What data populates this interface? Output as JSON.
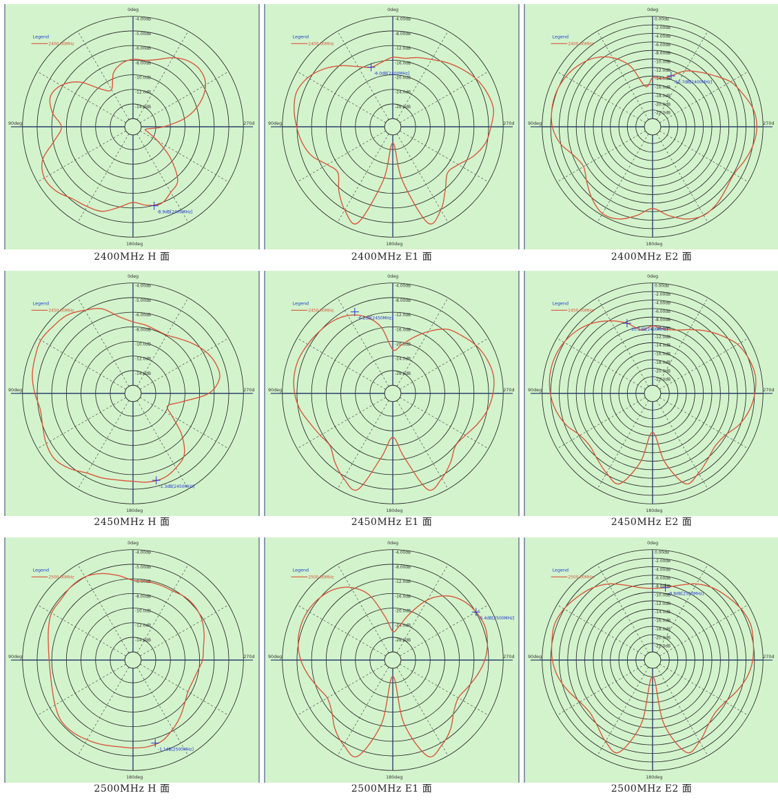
{
  "palette": {
    "background": "#d3f3cc",
    "grid": "#1a1a1a",
    "trace": "#d9553b",
    "marker": "#2233cc",
    "legend_text": "#1f3fcf"
  },
  "angle_labels": {
    "top": "0deg",
    "left": "90deg",
    "right": "270d",
    "bottom": "180deg"
  },
  "legend_title": "Legend",
  "chart_data": [
    {
      "type": "polar",
      "caption": "2400MHz H 面",
      "legend": "2400.00MHz",
      "rings": 7,
      "ring_labels": [
        "-4.00dB",
        "-5.00dB",
        "-6.00dB",
        "-8.00dB",
        "-10.0dB",
        "-12.0dB",
        "-14.0dB"
      ],
      "marker_label": "-8.9dB[2400MHz]",
      "marker_angle": 195,
      "r": [
        0.58,
        0.55,
        0.48,
        0.34,
        0.4,
        0.6,
        0.73,
        0.78,
        0.72,
        0.62,
        0.7,
        0.86,
        0.92,
        0.9,
        0.84,
        0.82,
        0.8,
        0.72,
        0.66,
        0.7,
        0.72,
        0.66,
        0.6,
        0.4,
        0.2,
        0.08,
        0.05,
        0.22,
        0.45,
        0.62,
        0.74,
        0.78,
        0.76,
        0.7,
        0.62,
        0.58
      ]
    },
    {
      "type": "polar",
      "caption": "2400MHz E1 面",
      "legend": "2400.00MHz",
      "rings": 7,
      "ring_labels": [
        "-4.00dB",
        "-8.00dB",
        "-12.0dB",
        "-16.0dB",
        "-20.0dB",
        "-24.0dB",
        "-28.0dB"
      ],
      "marker_label": "-6.0dB[2400MHz]",
      "marker_angle": 20,
      "r": [
        0.6,
        0.56,
        0.54,
        0.6,
        0.7,
        0.8,
        0.88,
        0.92,
        0.9,
        0.86,
        0.82,
        0.76,
        0.66,
        0.62,
        0.74,
        0.86,
        0.92,
        0.45,
        0.08,
        0.45,
        0.92,
        0.86,
        0.72,
        0.62,
        0.66,
        0.76,
        0.84,
        0.88,
        0.92,
        0.9,
        0.86,
        0.8,
        0.74,
        0.68,
        0.64,
        0.6
      ]
    },
    {
      "type": "polar",
      "caption": "2400MHz E2 面",
      "legend": "2400.00MHz",
      "rings": 12,
      "ring_labels": [
        "0.00dB",
        "-2.00dB",
        "-4.00dB",
        "-6.00dB",
        "-8.00dB",
        "-10.0dB",
        "-12.0dB",
        "-14.0dB",
        "-16.0dB",
        "-18.0dB",
        "-20.0dB",
        "-22.0dB"
      ],
      "marker_label": "-10.7dB[2400MHz]",
      "marker_angle": 340,
      "r": [
        0.4,
        0.32,
        0.55,
        0.7,
        0.8,
        0.86,
        0.9,
        0.92,
        0.92,
        0.9,
        0.84,
        0.74,
        0.7,
        0.76,
        0.84,
        0.9,
        0.88,
        0.8,
        0.72,
        0.8,
        0.88,
        0.92,
        0.9,
        0.86,
        0.84,
        0.88,
        0.92,
        0.94,
        0.92,
        0.86,
        0.8,
        0.7,
        0.62,
        0.55,
        0.45,
        0.4
      ]
    },
    {
      "type": "polar",
      "caption": "2450MHz H 面",
      "legend": "2450.00MHz",
      "rings": 7,
      "ring_labels": [
        "-4.00dB",
        "-5.00dB",
        "-6.00dB",
        "-8.00dB",
        "-10.0dB",
        "-12.0dB",
        "-14.0dB"
      ],
      "marker_label": "-1.3dB[2450MHz]",
      "marker_angle": 195,
      "r": [
        0.62,
        0.68,
        0.8,
        0.86,
        0.92,
        0.94,
        0.96,
        0.94,
        0.92,
        0.88,
        0.84,
        0.86,
        0.9,
        0.92,
        0.88,
        0.82,
        0.8,
        0.78,
        0.78,
        0.8,
        0.8,
        0.76,
        0.7,
        0.54,
        0.36,
        0.28,
        0.4,
        0.66,
        0.78,
        0.78,
        0.74,
        0.68,
        0.62,
        0.58,
        0.58,
        0.6
      ]
    },
    {
      "type": "polar",
      "caption": "2450MHz E1 面",
      "legend": "2450.00MHz",
      "rings": 7,
      "ring_labels": [
        "-4.00dB",
        "-8.00dB",
        "-12.0dB",
        "-16.0dB",
        "-20.0dB",
        "-24.0dB",
        "-28.0dB"
      ],
      "marker_label": "-6.2dB[2450MHz]",
      "marker_angle": 25,
      "r": [
        0.35,
        0.58,
        0.72,
        0.8,
        0.84,
        0.86,
        0.88,
        0.9,
        0.9,
        0.88,
        0.84,
        0.78,
        0.74,
        0.72,
        0.8,
        0.88,
        0.92,
        0.55,
        0.35,
        0.55,
        0.92,
        0.88,
        0.8,
        0.72,
        0.74,
        0.8,
        0.86,
        0.9,
        0.92,
        0.9,
        0.86,
        0.8,
        0.74,
        0.62,
        0.5,
        0.4
      ]
    },
    {
      "type": "polar",
      "caption": "2450MHz E2 面",
      "legend": "2450.00MHz",
      "rings": 12,
      "ring_labels": [
        "0.00dB",
        "-2.00dB",
        "-4.00dB",
        "-6.00dB",
        "-8.00dB",
        "-10.0dB",
        "-12.0dB",
        "-14.0dB",
        "-16.0dB",
        "-18.0dB",
        "-20.0dB",
        "-22.0dB"
      ],
      "marker_label": "-10.1dB[2450MHz]",
      "marker_angle": 20,
      "r": [
        0.58,
        0.55,
        0.65,
        0.74,
        0.82,
        0.88,
        0.92,
        0.94,
        0.94,
        0.92,
        0.88,
        0.82,
        0.74,
        0.72,
        0.76,
        0.82,
        0.86,
        0.6,
        0.3,
        0.6,
        0.86,
        0.82,
        0.76,
        0.72,
        0.74,
        0.82,
        0.88,
        0.92,
        0.94,
        0.92,
        0.88,
        0.8,
        0.72,
        0.64,
        0.58,
        0.56
      ]
    },
    {
      "type": "polar",
      "caption": "2500MHz H 面",
      "legend": "2500.00MHz",
      "rings": 7,
      "ring_labels": [
        "-4.00dB",
        "-5.00dB",
        "-6.00dB",
        "-8.00dB",
        "-10.0dB",
        "-12.0dB",
        "-14.0dB"
      ],
      "marker_label": "-1.1dB[2500MHz]",
      "marker_angle": 195,
      "r": [
        0.7,
        0.76,
        0.82,
        0.86,
        0.86,
        0.84,
        0.84,
        0.8,
        0.76,
        0.74,
        0.74,
        0.76,
        0.8,
        0.84,
        0.84,
        0.82,
        0.8,
        0.78,
        0.78,
        0.78,
        0.76,
        0.7,
        0.64,
        0.58,
        0.54,
        0.54,
        0.56,
        0.6,
        0.62,
        0.66,
        0.7,
        0.72,
        0.72,
        0.7,
        0.7,
        0.7
      ]
    },
    {
      "type": "polar",
      "caption": "2500MHz E1 面",
      "legend": "2500.00MHz",
      "rings": 7,
      "ring_labels": [
        "-4.00dB",
        "-8.00dB",
        "-12.0dB",
        "-16.0dB",
        "-20.0dB",
        "-24.0dB",
        "-28.0dB"
      ],
      "marker_label": "-5.4dB[2500MHz]",
      "marker_angle": 300,
      "r": [
        0.2,
        0.35,
        0.6,
        0.74,
        0.82,
        0.86,
        0.88,
        0.88,
        0.86,
        0.82,
        0.76,
        0.7,
        0.66,
        0.7,
        0.8,
        0.88,
        0.92,
        0.55,
        0.08,
        0.55,
        0.92,
        0.88,
        0.8,
        0.7,
        0.66,
        0.7,
        0.76,
        0.82,
        0.86,
        0.88,
        0.86,
        0.82,
        0.74,
        0.6,
        0.4,
        0.25
      ]
    },
    {
      "type": "polar",
      "caption": "2500MHz E2 面",
      "legend": "2500.00MHz",
      "rings": 12,
      "ring_labels": [
        "0.00dB",
        "-2.00dB",
        "-4.00dB",
        "-6.00dB",
        "-8.00dB",
        "-10.0dB",
        "-12.0dB",
        "-14.0dB",
        "-16.0dB",
        "-18.0dB",
        "-20.0dB",
        "-22.0dB"
      ],
      "marker_label": "-9.8dB[2500MHz]",
      "marker_angle": 350,
      "r": [
        0.62,
        0.64,
        0.7,
        0.78,
        0.84,
        0.88,
        0.92,
        0.94,
        0.92,
        0.9,
        0.86,
        0.8,
        0.74,
        0.72,
        0.76,
        0.84,
        0.88,
        0.55,
        0.08,
        0.55,
        0.88,
        0.84,
        0.76,
        0.72,
        0.74,
        0.8,
        0.86,
        0.9,
        0.92,
        0.94,
        0.92,
        0.88,
        0.84,
        0.78,
        0.7,
        0.64
      ]
    }
  ]
}
